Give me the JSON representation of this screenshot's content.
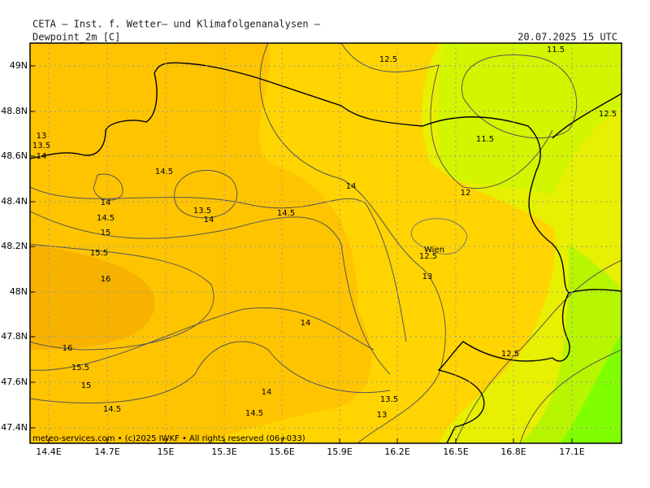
{
  "header": {
    "institute": "CETA – Inst. f. Wetter– und Klimafolgenanalysen –",
    "parameter": "Dewpoint_2m [C]",
    "valid_time": "20.07.2025 15 UTC"
  },
  "axes": {
    "latitudes": [
      "49N",
      "48.8N",
      "48.6N",
      "48.4N",
      "48.2N",
      "48N",
      "47.8N",
      "47.6N",
      "47.4N"
    ],
    "longitudes": [
      "14.4E",
      "14.7E",
      "15E",
      "15.3E",
      "15.6E",
      "15.9E",
      "16.2E",
      "16.5E",
      "16.8E",
      "17.1E"
    ]
  },
  "contour_labels": [
    "12.5",
    "11.5",
    "12.5",
    "11.5",
    "13",
    "13.5",
    "14",
    "14.5",
    "14",
    "12",
    "14",
    "13.5",
    "14",
    "14.5",
    "14.5",
    "15",
    "15.5",
    "12.5",
    "13",
    "16",
    "14",
    "16",
    "12.5",
    "15.5",
    "15",
    "14",
    "13.5",
    "14.5",
    "14.5",
    "13"
  ],
  "city": "Wien",
  "footer": "meteo-services.com • (c)2025 IWKF • All rights reserved (06+033)"
}
